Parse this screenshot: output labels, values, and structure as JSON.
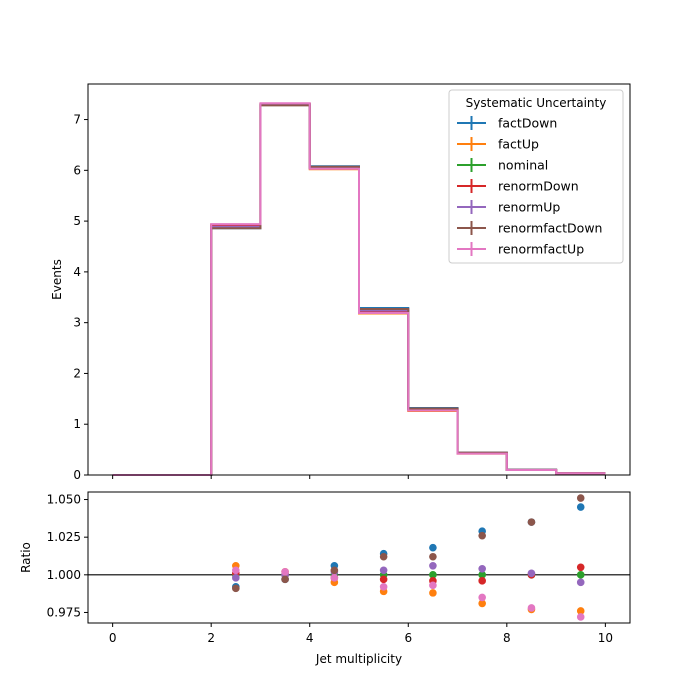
{
  "chart_data": [
    {
      "type": "line",
      "title": "",
      "xlabel": "",
      "ylabel": "Events",
      "xlim": [
        -0.5,
        10.5
      ],
      "ylim": [
        0,
        7.7
      ],
      "x_ticks": [
        0,
        2,
        4,
        6,
        8,
        10
      ],
      "y_ticks": [
        0,
        1,
        2,
        3,
        4,
        5,
        6,
        7
      ],
      "grid": false,
      "legend_title": "Systematic Uncertainty",
      "legend_position": "top-right",
      "bin_edges": [
        0,
        1,
        2,
        3,
        4,
        5,
        6,
        7,
        8,
        9,
        10
      ],
      "series": [
        {
          "name": "factDown",
          "color": "#1f77b4",
          "values": [
            0,
            0,
            4.86,
            7.29,
            6.08,
            3.29,
            1.32,
            0.44,
            0.105,
            0.037
          ]
        },
        {
          "name": "factUp",
          "color": "#ff7f0e",
          "values": [
            0,
            0,
            4.93,
            7.31,
            6.02,
            3.18,
            1.26,
            0.42,
            0.098,
            0.034
          ]
        },
        {
          "name": "nominal",
          "color": "#2ca02c",
          "values": [
            0,
            0,
            4.9,
            7.3,
            6.05,
            3.23,
            1.29,
            0.43,
            0.1,
            0.035
          ]
        },
        {
          "name": "renormDown",
          "color": "#d62728",
          "values": [
            0,
            0,
            4.91,
            7.3,
            6.04,
            3.22,
            1.29,
            0.43,
            0.1,
            0.035
          ]
        },
        {
          "name": "renormUp",
          "color": "#9467bd",
          "values": [
            0,
            0,
            4.89,
            7.3,
            6.06,
            3.24,
            1.3,
            0.43,
            0.1,
            0.035
          ]
        },
        {
          "name": "renormfactDown",
          "color": "#8c564b",
          "values": [
            0,
            0,
            4.86,
            7.28,
            6.07,
            3.27,
            1.31,
            0.44,
            0.1,
            0.036
          ]
        },
        {
          "name": "renormfactUp",
          "color": "#e377c2",
          "values": [
            0,
            0,
            4.94,
            7.32,
            6.03,
            3.19,
            1.27,
            0.42,
            0.098,
            0.034
          ]
        }
      ]
    },
    {
      "type": "scatter",
      "title": "",
      "xlabel": "Jet multiplicity",
      "ylabel": "Ratio",
      "xlim": [
        -0.5,
        10.5
      ],
      "ylim": [
        0.968,
        1.055
      ],
      "x_ticks": [
        0,
        2,
        4,
        6,
        8,
        10
      ],
      "y_ticks": [
        0.975,
        1.0,
        1.025,
        1.05
      ],
      "y_tick_labels": [
        "0.975",
        "1.000",
        "1.025",
        "1.050"
      ],
      "reference_line": 1.0,
      "grid": false,
      "x": [
        2.5,
        3.5,
        4.5,
        5.5,
        6.5,
        7.5,
        8.5,
        9.5
      ],
      "series": [
        {
          "name": "factDown",
          "color": "#1f77b4",
          "values": [
            0.992,
            0.997,
            1.006,
            1.014,
            1.018,
            1.029,
            1.035,
            1.045
          ]
        },
        {
          "name": "factUp",
          "color": "#ff7f0e",
          "values": [
            1.006,
            1.002,
            0.995,
            0.989,
            0.988,
            0.981,
            0.977,
            0.976
          ]
        },
        {
          "name": "nominal",
          "color": "#2ca02c",
          "values": [
            1.0,
            1.0,
            1.0,
            1.0,
            1.0,
            1.0,
            1.0,
            1.0
          ]
        },
        {
          "name": "renormDown",
          "color": "#d62728",
          "values": [
            1.001,
            1.0,
            0.998,
            0.997,
            0.996,
            0.996,
            1.0,
            1.005
          ]
        },
        {
          "name": "renormUp",
          "color": "#9467bd",
          "values": [
            0.998,
            1.0,
            1.002,
            1.003,
            1.006,
            1.004,
            1.001,
            0.995
          ]
        },
        {
          "name": "renormfactDown",
          "color": "#8c564b",
          "values": [
            0.991,
            0.997,
            1.003,
            1.012,
            1.012,
            1.026,
            1.035,
            1.051
          ]
        },
        {
          "name": "renormfactUp",
          "color": "#e377c2",
          "values": [
            1.003,
            1.002,
            0.998,
            0.992,
            0.993,
            0.985,
            0.978,
            0.972
          ]
        }
      ]
    }
  ]
}
